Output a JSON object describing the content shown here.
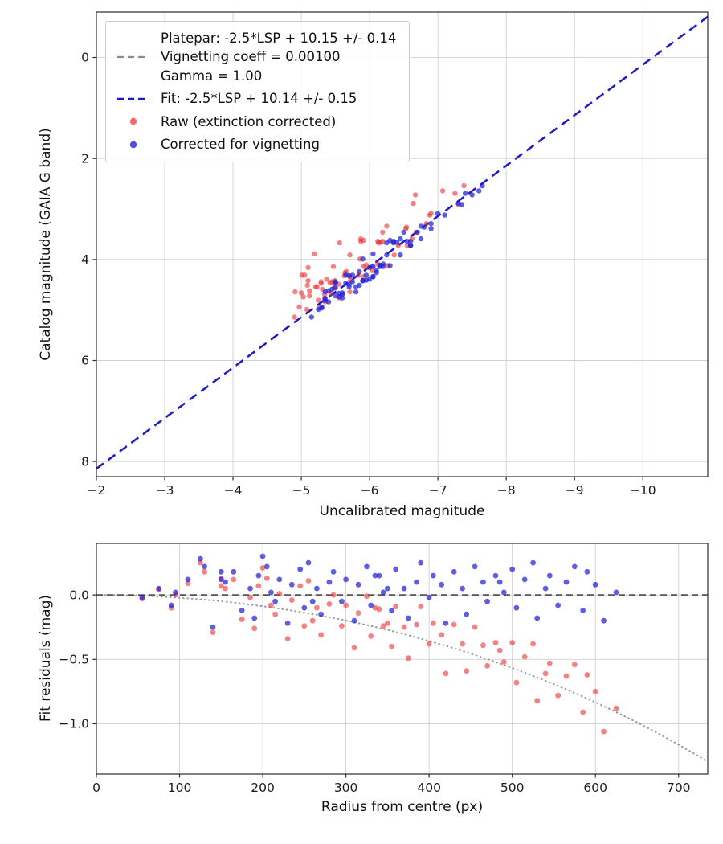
{
  "colors": {
    "platepar_line": "#8a8a8a",
    "fit_line": "#1a1acc",
    "raw": "#ee2e2e",
    "corrected": "#2020d8",
    "grid": "#cfcfcf",
    "axis": "#2b2b2b",
    "text": "#1a1a1a",
    "zero_line": "#555555",
    "vignetting_curve": "#999999"
  },
  "legend": {
    "platepar_label": "Platepar: -2.5*LSP + 10.15 +/- 0.14\nVignetting coeff = 0.00100\nGamma = 1.00",
    "fit_label": "Fit: -2.5*LSP + 10.14 +/- 0.15",
    "raw_label": "Raw (extinction corrected)",
    "corrected_label": "Corrected for vignetting"
  },
  "chart_data": [
    {
      "type": "scatter",
      "xlabel": "Uncalibrated magnitude",
      "ylabel": "Catalog magnitude (GAIA G band)",
      "xlim": [
        -2,
        -10.95
      ],
      "ylim": [
        8.3,
        -0.9
      ],
      "axes_inverted": true,
      "grid": true,
      "legend_position": "upper left",
      "xticks": {
        "values": [
          -2,
          -3,
          -4,
          -5,
          -6,
          -7,
          -8,
          -9,
          -10
        ],
        "labels": [
          "−2",
          "−3",
          "−4",
          "−5",
          "−6",
          "−7",
          "−8",
          "−9",
          "−10"
        ]
      },
      "yticks": {
        "values": [
          0,
          2,
          4,
          6,
          8
        ],
        "labels": [
          "0",
          "2",
          "4",
          "6",
          "8"
        ]
      },
      "lines": [
        {
          "name": "platepar-line",
          "label": "Platepar: -2.5*LSP + 10.15 +/- 0.14\nVignetting coeff = 0.00100\nGamma = 1.00",
          "x": [
            -2,
            -10.95
          ],
          "y": [
            8.15,
            -0.8
          ],
          "color": "#8a8a8a",
          "dash": "11,7",
          "width": 2.0
        },
        {
          "name": "fit-line",
          "label": "Fit: -2.5*LSP + 10.14 +/- 0.15",
          "x": [
            -2,
            -10.95
          ],
          "y": [
            8.14,
            -0.81
          ],
          "color": "#1a1acc",
          "dash": "11,7",
          "width": 2.3
        }
      ],
      "series": [
        {
          "name": "Raw (extinction corrected)",
          "marker_name": "raw-points",
          "color": "#ee2e2e",
          "opacity": 0.6,
          "size": 3.2,
          "x": [
            -5.34,
            -6.04,
            -5.48,
            -6.68,
            -5.27,
            -6.27,
            -5.56,
            -5.86,
            -6.55,
            -5.35,
            -6.04,
            -5.63,
            -6.83,
            -5.42,
            -6.12,
            -5.71,
            -6.36,
            -5.25,
            -6.9,
            -5.84,
            -6.13,
            -5.43,
            -6.62,
            -5.31,
            -5.91,
            -7.25,
            -5.55,
            -6.19,
            -5.08,
            -6.42,
            -5.66,
            -5.95,
            -5.29,
            -6.88,
            -5.72,
            -6.16,
            -5.34,
            -6.54,
            -7.38,
            -5.12,
            -5.91,
            -5.45,
            -6.19,
            -4.97,
            -5.71,
            -5.29,
            -6.53,
            -5.12,
            -5.91,
            -5.49,
            -6.12,
            -4.91,
            -5.64,
            -5.21,
            -6.25,
            -5.03,
            -7.07,
            -5.71,
            -5.23,
            -5.87,
            -5.0,
            -5.37,
            -5.01,
            -6.64,
            -5.47,
            -5.05,
            -5.87,
            -5.09,
            -5.56,
            -5.1,
            -6.67,
            -5.19,
            -5.1,
            -7.3,
            -4.9
          ],
          "y": [
            4.77,
            4.14,
            4.56,
            3.46,
            4.96,
            4.12,
            4.76,
            3.99,
            3.72,
            4.84,
            4.22,
            4.32,
            3.29,
            4.46,
            4.09,
            4.64,
            3.91,
            4.81,
            3.09,
            4.31,
            3.67,
            4.67,
            3.59,
            4.59,
            4.34,
            2.69,
            4.49,
            3.64,
            4.99,
            3.72,
            4.24,
            4.11,
            4.44,
            3.12,
            4.41,
            3.66,
            4.69,
            3.36,
            2.54,
            4.62,
            4.14,
            4.44,
            3.46,
            4.94,
            4.34,
            4.47,
            3.39,
            4.72,
            3.62,
            4.42,
            3.64,
            4.64,
            4.26,
            4.54,
            3.34,
            4.74,
            2.64,
            3.91,
            4.54,
            3.59,
            4.66,
            4.39,
            4.31,
            2.89,
            4.14,
            4.31,
            3.64,
            4.51,
            3.67,
            4.42,
            2.72,
            3.89,
            4.16,
            2.91,
            5.14
          ]
        },
        {
          "name": "Corrected for vignetting",
          "marker_name": "corrected-points",
          "color": "#2020d8",
          "opacity": 0.72,
          "size": 3.2,
          "x": [
            -5.35,
            -6.05,
            -5.5,
            -6.7,
            -5.3,
            -6.3,
            -5.6,
            -5.9,
            -6.6,
            -5.4,
            -6.1,
            -5.7,
            -6.9,
            -5.5,
            -6.2,
            -5.8,
            -6.45,
            -5.35,
            -7.0,
            -5.95,
            -6.25,
            -5.55,
            -6.75,
            -5.45,
            -6.05,
            -7.4,
            -5.7,
            -6.35,
            -5.25,
            -6.6,
            -5.85,
            -6.15,
            -5.5,
            -7.1,
            -5.95,
            -6.4,
            -5.6,
            -6.8,
            -7.65,
            -5.4,
            -6.2,
            -5.75,
            -6.5,
            -5.3,
            -6.05,
            -5.65,
            -6.9,
            -5.5,
            -6.3,
            -5.9,
            -6.55,
            -5.35,
            -6.1,
            -5.7,
            -6.75,
            -5.55,
            -7.6,
            -6.25,
            -5.8,
            -6.45,
            -5.6,
            -6.0,
            -5.65,
            -7.3,
            -6.15,
            -5.75,
            -6.6,
            -5.85,
            -6.35,
            -5.9,
            -7.5,
            -6.05,
            -6.0,
            -7.35,
            -5.15
          ],
          "y": [
            4.77,
            4.14,
            4.56,
            3.46,
            4.96,
            4.12,
            4.76,
            3.99,
            3.72,
            4.84,
            4.22,
            4.32,
            3.29,
            4.46,
            4.09,
            4.64,
            3.91,
            4.81,
            3.09,
            4.31,
            3.67,
            4.67,
            3.59,
            4.59,
            4.34,
            2.69,
            4.49,
            3.64,
            4.99,
            3.72,
            4.24,
            4.11,
            4.44,
            3.12,
            4.41,
            3.66,
            4.69,
            3.36,
            2.54,
            4.62,
            4.14,
            4.44,
            3.46,
            4.94,
            4.34,
            4.47,
            3.39,
            4.72,
            3.62,
            4.42,
            3.64,
            4.64,
            4.26,
            4.54,
            3.34,
            4.74,
            2.64,
            3.91,
            4.54,
            3.59,
            4.66,
            4.39,
            4.31,
            2.89,
            4.14,
            4.31,
            3.64,
            4.51,
            3.67,
            4.42,
            2.72,
            3.89,
            4.16,
            2.91,
            5.14
          ]
        }
      ]
    },
    {
      "type": "scatter",
      "xlabel": "Radius from centre (px)",
      "ylabel": "Fit residuals (mag)",
      "xlim": [
        0,
        735
      ],
      "ylim": [
        -1.39,
        0.4
      ],
      "grid": true,
      "xticks": {
        "values": [
          0,
          100,
          200,
          300,
          400,
          500,
          600,
          700
        ],
        "labels": [
          "0",
          "100",
          "200",
          "300",
          "400",
          "500",
          "600",
          "700"
        ]
      },
      "yticks": {
        "values": [
          0,
          -0.5,
          -1.0
        ],
        "labels": [
          "0.0",
          "−0.5",
          "−1.0"
        ]
      },
      "lines": [
        {
          "name": "zero-residual-line",
          "x": [
            0,
            735
          ],
          "y": [
            0,
            0
          ],
          "color": "#555555",
          "dash": "8,5",
          "width": 1.8
        }
      ],
      "curve": {
        "name": "vignetting-model-curve",
        "color": "#999999",
        "style": "dotted",
        "x": [
          0,
          25,
          50,
          75,
          100,
          125,
          150,
          175,
          200,
          225,
          250,
          275,
          300,
          325,
          350,
          375,
          400,
          425,
          450,
          475,
          500,
          525,
          550,
          575,
          600,
          625,
          650,
          675,
          700,
          735
        ],
        "y": [
          0,
          -0.001,
          -0.005,
          -0.012,
          -0.022,
          -0.034,
          -0.049,
          -0.067,
          -0.088,
          -0.111,
          -0.137,
          -0.166,
          -0.198,
          -0.233,
          -0.271,
          -0.313,
          -0.357,
          -0.404,
          -0.455,
          -0.509,
          -0.567,
          -0.628,
          -0.693,
          -0.761,
          -0.833,
          -0.909,
          -0.989,
          -1.074,
          -1.162,
          -1.294
        ]
      },
      "series": [
        {
          "name": "Raw (extinction corrected)",
          "marker_name": "raw-residual-points",
          "color": "#ee2e2e",
          "opacity": 0.6,
          "size": 3.4,
          "x": [
            55,
            75,
            90,
            95,
            110,
            125,
            130,
            140,
            150,
            155,
            165,
            175,
            185,
            190,
            195,
            200,
            205,
            210,
            215,
            220,
            230,
            235,
            245,
            250,
            255,
            260,
            265,
            270,
            280,
            285,
            295,
            300,
            310,
            315,
            325,
            330,
            340,
            345,
            350,
            355,
            360,
            370,
            375,
            385,
            390,
            400,
            405,
            415,
            420,
            430,
            440,
            445,
            455,
            465,
            470,
            480,
            485,
            490,
            500,
            505,
            515,
            525,
            530,
            540,
            545,
            555,
            565,
            575,
            585,
            590,
            600,
            610,
            625,
            150,
            335
          ],
          "y": [
            -0.03,
            0.04,
            -0.1,
            0.0,
            0.09,
            0.25,
            0.18,
            -0.29,
            0.13,
            0.05,
            0.12,
            -0.19,
            -0.02,
            -0.26,
            0.07,
            0.21,
            0.13,
            -0.08,
            -0.15,
            0.01,
            -0.34,
            -0.04,
            0.07,
            -0.24,
            0.11,
            -0.2,
            -0.1,
            -0.31,
            -0.07,
            0.0,
            -0.24,
            -0.08,
            -0.41,
            -0.14,
            -0.01,
            -0.32,
            -0.11,
            -0.24,
            -0.22,
            -0.4,
            -0.09,
            -0.25,
            -0.49,
            -0.23,
            -0.09,
            -0.38,
            -0.22,
            -0.31,
            -0.61,
            -0.23,
            -0.38,
            -0.59,
            -0.25,
            -0.39,
            -0.55,
            -0.37,
            -0.43,
            -0.52,
            -0.37,
            -0.68,
            -0.48,
            -0.38,
            -0.82,
            -0.61,
            -0.53,
            -0.78,
            -0.63,
            -0.54,
            -0.91,
            -0.62,
            -0.75,
            -1.06,
            -0.88,
            0.07,
            -0.1
          ]
        },
        {
          "name": "Corrected for vignetting",
          "marker_name": "corrected-residual-points",
          "color": "#2020d8",
          "opacity": 0.72,
          "size": 3.4,
          "x": [
            55,
            75,
            90,
            95,
            110,
            125,
            130,
            140,
            150,
            155,
            165,
            175,
            185,
            190,
            195,
            200,
            205,
            210,
            215,
            220,
            230,
            235,
            245,
            250,
            255,
            260,
            265,
            270,
            280,
            285,
            295,
            300,
            310,
            315,
            325,
            330,
            340,
            345,
            350,
            355,
            360,
            370,
            375,
            385,
            390,
            400,
            405,
            415,
            420,
            430,
            440,
            445,
            455,
            465,
            470,
            480,
            485,
            490,
            500,
            505,
            515,
            525,
            530,
            540,
            545,
            555,
            565,
            575,
            585,
            590,
            600,
            610,
            625,
            150,
            335
          ],
          "y": [
            -0.02,
            0.05,
            -0.08,
            0.02,
            0.12,
            0.28,
            0.22,
            -0.25,
            0.18,
            0.1,
            0.18,
            -0.12,
            0.05,
            -0.18,
            0.15,
            0.3,
            0.22,
            0.02,
            -0.05,
            0.12,
            -0.22,
            0.08,
            0.2,
            -0.1,
            0.25,
            -0.05,
            0.05,
            -0.15,
            0.1,
            0.18,
            -0.05,
            0.12,
            -0.2,
            0.08,
            0.22,
            -0.08,
            0.15,
            0.02,
            0.05,
            -0.12,
            0.2,
            0.05,
            -0.18,
            0.1,
            0.25,
            -0.02,
            0.15,
            0.08,
            -0.22,
            0.18,
            0.05,
            -0.15,
            0.22,
            0.1,
            -0.05,
            0.15,
            0.1,
            0.02,
            0.2,
            -0.1,
            0.12,
            0.25,
            -0.18,
            0.05,
            0.15,
            -0.08,
            0.1,
            0.22,
            -0.12,
            0.18,
            0.08,
            -0.2,
            0.02,
            0.12,
            0.15
          ]
        }
      ]
    }
  ]
}
